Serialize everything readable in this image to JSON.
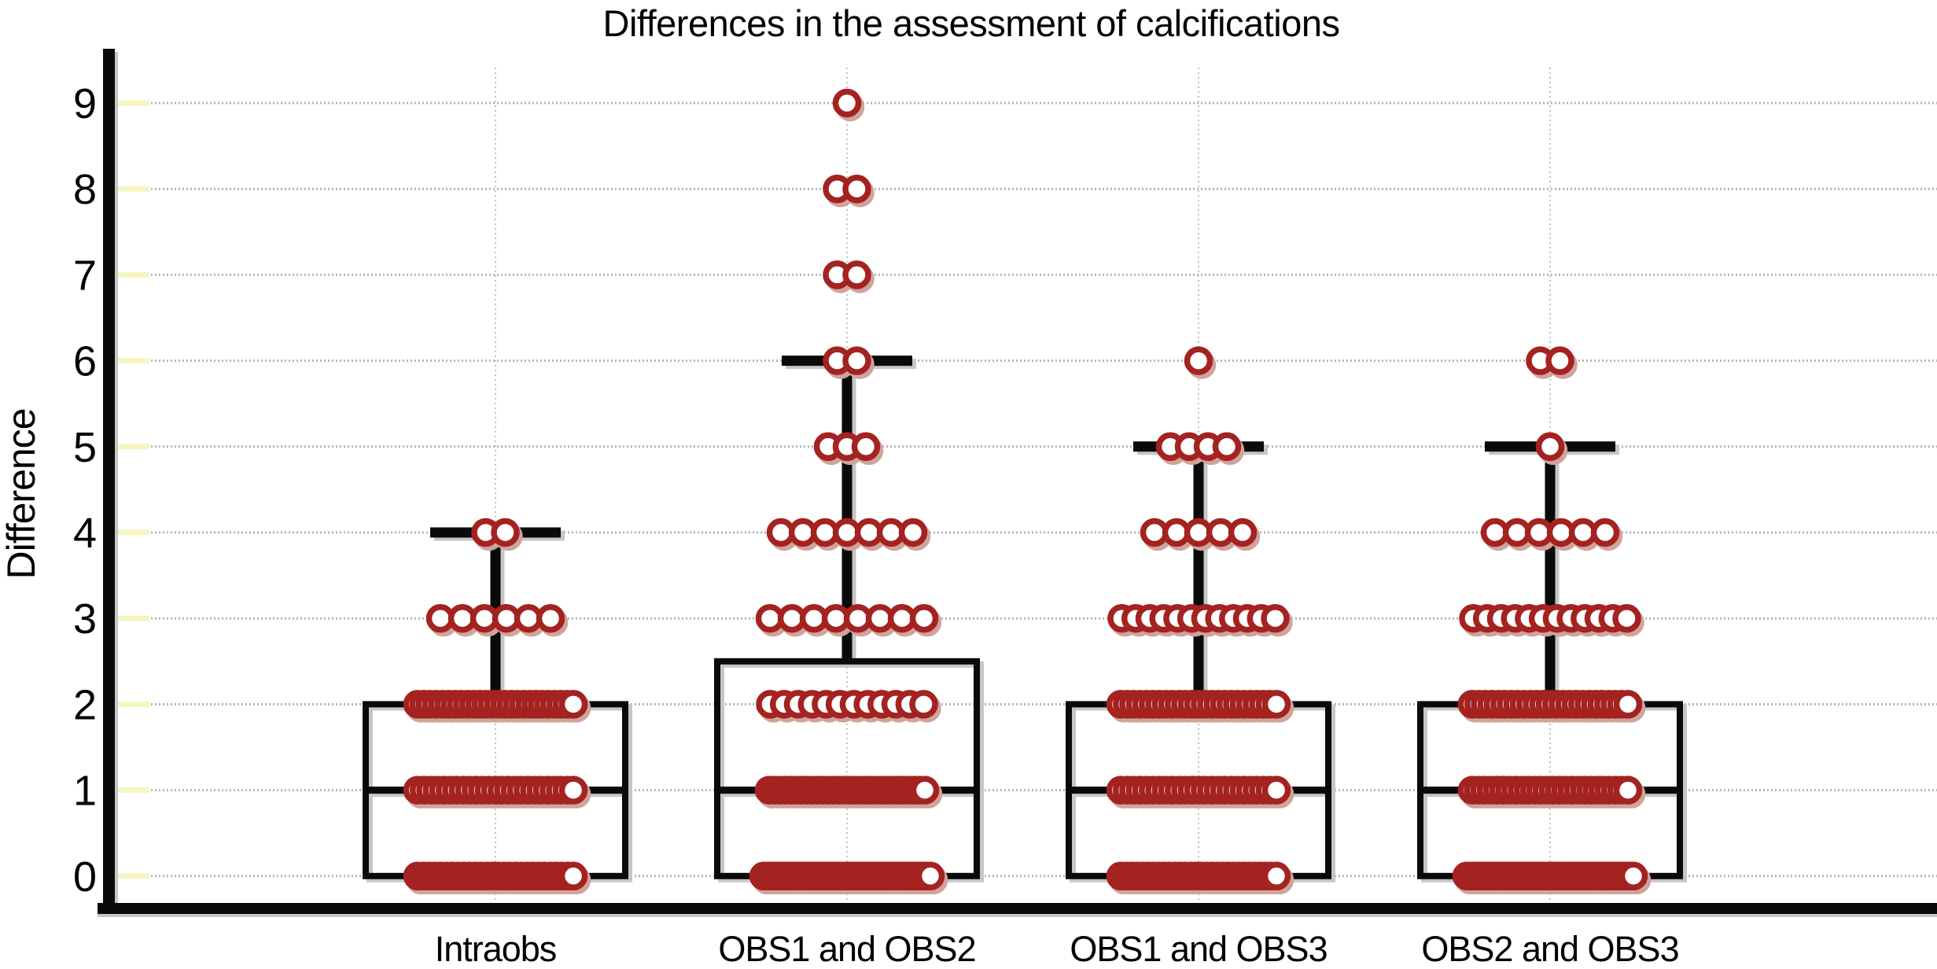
{
  "title": "Differences in the assessment of calcifications",
  "y_axis": {
    "label": "Difference",
    "ticks": [
      9,
      8,
      7,
      6,
      5,
      4,
      3,
      2,
      1,
      0
    ]
  },
  "colors": {
    "point_stroke": "#a42220",
    "point_fill": "#ffffff",
    "point_shadow": "#d0a39c",
    "line": "#0a0a0a",
    "line_shadow": "#c6c6c6",
    "grid": "#b4b4b4",
    "tick_mark": "#f7f5c0",
    "background": "#ffffff",
    "text": "#000000"
  },
  "chart_data": {
    "type": "boxplot",
    "title": "Differences in the assessment of calcifications",
    "xlabel": "",
    "ylabel": "Difference",
    "ylim": [
      0,
      9
    ],
    "grid": "dotted horizontal and vertical",
    "legend": "none",
    "categories": [
      "Intraobs",
      "OBS1 and OBS2",
      "OBS1 and OBS3",
      "OBS2 and OBS3"
    ],
    "groups": [
      {
        "label": "Intraobs",
        "box": {
          "q1": 0,
          "median": 1,
          "q3": 2,
          "whisker_low": 0,
          "whisker_high": 4
        },
        "points": [
          {
            "value": 4,
            "count": 2
          },
          {
            "value": 3,
            "count": 6
          },
          {
            "value": 2,
            "count": 26
          },
          {
            "value": 1,
            "count": 25
          },
          {
            "value": 0,
            "count": 28
          }
        ]
      },
      {
        "label": "OBS1 and OBS2",
        "box": {
          "q1": 0,
          "median": 1,
          "q3": 2.5,
          "whisker_low": 0,
          "whisker_high": 6
        },
        "points": [
          {
            "value": 9,
            "count": 1
          },
          {
            "value": 8,
            "count": 2
          },
          {
            "value": 7,
            "count": 2
          },
          {
            "value": 6,
            "count": 2
          },
          {
            "value": 5,
            "count": 3
          },
          {
            "value": 4,
            "count": 7
          },
          {
            "value": 3,
            "count": 8
          },
          {
            "value": 2,
            "count": 12
          },
          {
            "value": 1,
            "count": 30
          },
          {
            "value": 0,
            "count": 42
          }
        ]
      },
      {
        "label": "OBS1 and OBS3",
        "box": {
          "q1": 0,
          "median": 1,
          "q3": 2,
          "whisker_low": 0,
          "whisker_high": 5
        },
        "points": [
          {
            "value": 6,
            "count": 1
          },
          {
            "value": 5,
            "count": 4
          },
          {
            "value": 4,
            "count": 5
          },
          {
            "value": 3,
            "count": 12
          },
          {
            "value": 2,
            "count": 25
          },
          {
            "value": 1,
            "count": 25
          },
          {
            "value": 0,
            "count": 30
          }
        ]
      },
      {
        "label": "OBS2 and OBS3",
        "box": {
          "q1": 0,
          "median": 1,
          "q3": 2,
          "whisker_low": 0,
          "whisker_high": 5
        },
        "points": [
          {
            "value": 6,
            "count": 2
          },
          {
            "value": 5,
            "count": 1
          },
          {
            "value": 4,
            "count": 6
          },
          {
            "value": 3,
            "count": 12
          },
          {
            "value": 2,
            "count": 25
          },
          {
            "value": 1,
            "count": 26
          },
          {
            "value": 0,
            "count": 42
          }
        ]
      }
    ]
  }
}
